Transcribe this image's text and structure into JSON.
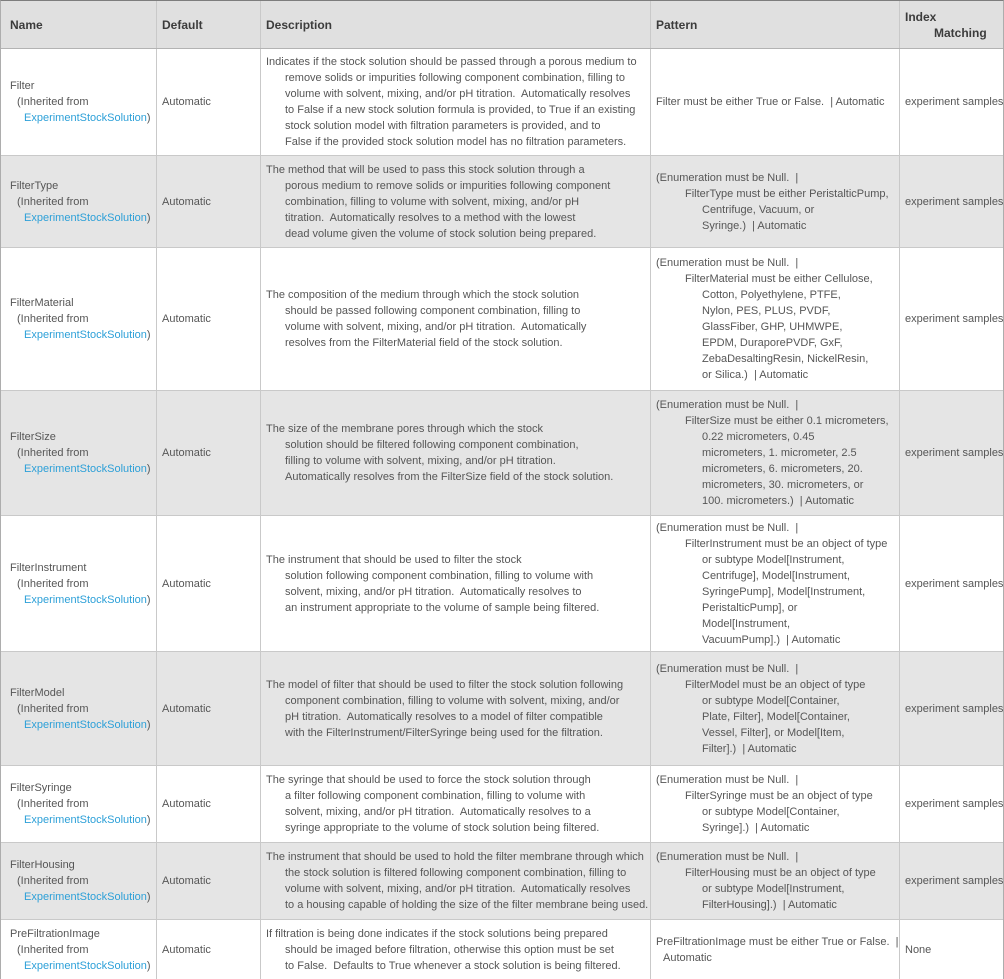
{
  "table": {
    "headers": {
      "name": "Name",
      "default": "Default",
      "description": "Description",
      "pattern": "Pattern",
      "index_matching_lines": [
        {
          "t": "Index",
          "i": 0
        },
        {
          "t": "Matching",
          "i": 2
        }
      ]
    },
    "inherited": {
      "prefix": "(Inherited from",
      "link": "ExperimentStockSolution",
      "close": ")"
    },
    "colors": {
      "link_blue": "#2da0d8",
      "header_bg": "#e0e0e0",
      "alt_row_bg": "#e5e5e5",
      "text_gray": "#565656"
    },
    "rows": [
      {
        "name": "Filter",
        "default": "Automatic",
        "description_lines": [
          {
            "t": "Indicates if the stock solution should be passed through a porous medium to",
            "i": 0
          },
          {
            "t": "remove solids or impurities following component combination, filling to",
            "i": 1
          },
          {
            "t": "volume with solvent, mixing, and/or pH titration.  Automatically resolves",
            "i": 1
          },
          {
            "t": "to False if a new stock solution formula is provided, to True if an existing",
            "i": 1
          },
          {
            "t": "stock solution model with filtration parameters is provided, and to",
            "i": 1
          },
          {
            "t": "False if the provided stock solution model has no filtration parameters.",
            "i": 1
          }
        ],
        "pattern_lines": [
          {
            "t": "Filter must be either True or False.  | Automatic",
            "i": 0
          }
        ],
        "index_matching": "experiment samples"
      },
      {
        "name": "FilterType",
        "default": "Automatic",
        "description_lines": [
          {
            "t": "The method that will be used to pass this stock solution through a",
            "i": 0
          },
          {
            "t": "porous medium to remove solids or impurities following component",
            "i": 1
          },
          {
            "t": "combination, filling to volume with solvent, mixing, and/or pH",
            "i": 1
          },
          {
            "t": "titration.  Automatically resolves to a method with the lowest",
            "i": 1
          },
          {
            "t": "dead volume given the volume of stock solution being prepared.",
            "i": 1
          }
        ],
        "pattern_lines": [
          {
            "t": "(Enumeration must be Null.  |",
            "i": 0
          },
          {
            "t": "FilterType must be either PeristalticPump,",
            "i": 2
          },
          {
            "t": "Centrifuge, Vacuum, or",
            "i": 3
          },
          {
            "t": "Syringe.)  | Automatic",
            "i": 3
          }
        ],
        "index_matching": "experiment samples"
      },
      {
        "name": "FilterMaterial",
        "default": "Automatic",
        "description_lines": [
          {
            "t": "The composition of the medium through which the stock solution",
            "i": 0
          },
          {
            "t": "should be passed following component combination, filling to",
            "i": 1
          },
          {
            "t": "volume with solvent, mixing, and/or pH titration.  Automatically",
            "i": 1
          },
          {
            "t": "resolves from the FilterMaterial field of the stock solution.",
            "i": 1
          }
        ],
        "pattern_lines": [
          {
            "t": "(Enumeration must be Null.  |",
            "i": 0
          },
          {
            "t": "FilterMaterial must be either Cellulose,",
            "i": 2
          },
          {
            "t": "Cotton, Polyethylene, PTFE,",
            "i": 3
          },
          {
            "t": "Nylon, PES, PLUS, PVDF,",
            "i": 3
          },
          {
            "t": "GlassFiber, GHP, UHMWPE,",
            "i": 3
          },
          {
            "t": "EPDM, DuraporePVDF, GxF,",
            "i": 3
          },
          {
            "t": "ZebaDesaltingResin, NickelResin,",
            "i": 3
          },
          {
            "t": "or Silica.)  | Automatic",
            "i": 3
          }
        ],
        "index_matching": "experiment samples"
      },
      {
        "name": "FilterSize",
        "default": "Automatic",
        "description_lines": [
          {
            "t": "The size of the membrane pores through which the stock",
            "i": 0
          },
          {
            "t": "solution should be filtered following component combination,",
            "i": 1
          },
          {
            "t": "filling to volume with solvent, mixing, and/or pH titration.",
            "i": 1
          },
          {
            "t": "Automatically resolves from the FilterSize field of the stock solution.",
            "i": 1
          }
        ],
        "pattern_lines": [
          {
            "t": "(Enumeration must be Null.  |",
            "i": 0
          },
          {
            "t": "FilterSize must be either 0.1 micrometers,",
            "i": 2
          },
          {
            "t": "0.22 micrometers, 0.45",
            "i": 3
          },
          {
            "t": "micrometers, 1. micrometer, 2.5",
            "i": 3
          },
          {
            "t": "micrometers, 6. micrometers, 20.",
            "i": 3
          },
          {
            "t": "micrometers, 30. micrometers, or",
            "i": 3
          },
          {
            "t": "100. micrometers.)  | Automatic",
            "i": 3
          }
        ],
        "index_matching": "experiment samples"
      },
      {
        "name": "FilterInstrument",
        "default": "Automatic",
        "description_lines": [
          {
            "t": "The instrument that should be used to filter the stock",
            "i": 0
          },
          {
            "t": "solution following component combination, filling to volume with",
            "i": 1
          },
          {
            "t": "solvent, mixing, and/or pH titration.  Automatically resolves to",
            "i": 1
          },
          {
            "t": "an instrument appropriate to the volume of sample being filtered.",
            "i": 1
          }
        ],
        "pattern_lines": [
          {
            "t": "(Enumeration must be Null.  |",
            "i": 0
          },
          {
            "t": "FilterInstrument must be an object of type",
            "i": 2
          },
          {
            "t": "or subtype Model[Instrument,",
            "i": 3
          },
          {
            "t": "Centrifuge], Model[Instrument,",
            "i": 3
          },
          {
            "t": "SyringePump], Model[Instrument,",
            "i": 3
          },
          {
            "t": "PeristalticPump], or",
            "i": 3
          },
          {
            "t": "Model[Instrument,",
            "i": 3
          },
          {
            "t": "VacuumPump].)  | Automatic",
            "i": 3
          }
        ],
        "index_matching": "experiment samples"
      },
      {
        "name": "FilterModel",
        "default": "Automatic",
        "description_lines": [
          {
            "t": "The model of filter that should be used to filter the stock solution following",
            "i": 0
          },
          {
            "t": "component combination, filling to volume with solvent, mixing, and/or",
            "i": 1
          },
          {
            "t": "pH titration.  Automatically resolves to a model of filter compatible",
            "i": 1
          },
          {
            "t": "with the FilterInstrument/FilterSyringe being used for the filtration.",
            "i": 1
          }
        ],
        "pattern_lines": [
          {
            "t": "(Enumeration must be Null.  |",
            "i": 0
          },
          {
            "t": "FilterModel must be an object of type",
            "i": 2
          },
          {
            "t": "or subtype Model[Container,",
            "i": 3
          },
          {
            "t": "Plate, Filter], Model[Container,",
            "i": 3
          },
          {
            "t": "Vessel, Filter], or Model[Item,",
            "i": 3
          },
          {
            "t": "Filter].)  | Automatic",
            "i": 3
          }
        ],
        "index_matching": "experiment samples"
      },
      {
        "name": "FilterSyringe",
        "default": "Automatic",
        "description_lines": [
          {
            "t": "The syringe that should be used to force the stock solution through",
            "i": 0
          },
          {
            "t": "a filter following component combination, filling to volume with",
            "i": 1
          },
          {
            "t": "solvent, mixing, and/or pH titration.  Automatically resolves to a",
            "i": 1
          },
          {
            "t": "syringe appropriate to the volume of stock solution being filtered.",
            "i": 1
          }
        ],
        "pattern_lines": [
          {
            "t": "(Enumeration must be Null.  |",
            "i": 0
          },
          {
            "t": "FilterSyringe must be an object of type",
            "i": 2
          },
          {
            "t": "or subtype Model[Container,",
            "i": 3
          },
          {
            "t": "Syringe].)  | Automatic",
            "i": 3
          }
        ],
        "index_matching": "experiment samples"
      },
      {
        "name": "FilterHousing",
        "default": "Automatic",
        "description_lines": [
          {
            "t": "The instrument that should be used to hold the filter membrane through which",
            "i": 0
          },
          {
            "t": "the stock solution is filtered following component combination, filling to",
            "i": 1
          },
          {
            "t": "volume with solvent, mixing, and/or pH titration.  Automatically resolves",
            "i": 1
          },
          {
            "t": "to a housing capable of holding the size of the filter membrane being used.",
            "i": 1
          }
        ],
        "pattern_lines": [
          {
            "t": "(Enumeration must be Null.  |",
            "i": 0
          },
          {
            "t": "FilterHousing must be an object of type",
            "i": 2
          },
          {
            "t": "or subtype Model[Instrument,",
            "i": 3
          },
          {
            "t": "FilterHousing].)  | Automatic",
            "i": 3
          }
        ],
        "index_matching": "experiment samples"
      },
      {
        "name": "PreFiltrationImage",
        "default": "Automatic",
        "description_lines": [
          {
            "t": "If filtration is being done indicates if the stock solutions being prepared",
            "i": 0
          },
          {
            "t": "should be imaged before filtration, otherwise this option must be set",
            "i": 1
          },
          {
            "t": "to False.  Defaults to True whenever a stock solution is being filtered.",
            "i": 1
          }
        ],
        "pattern_lines": [
          {
            "t": "PreFiltrationImage must be either True or False.  |",
            "i": 0
          },
          {
            "t": "Automatic",
            "i": 4
          }
        ],
        "index_matching": "None"
      }
    ]
  }
}
